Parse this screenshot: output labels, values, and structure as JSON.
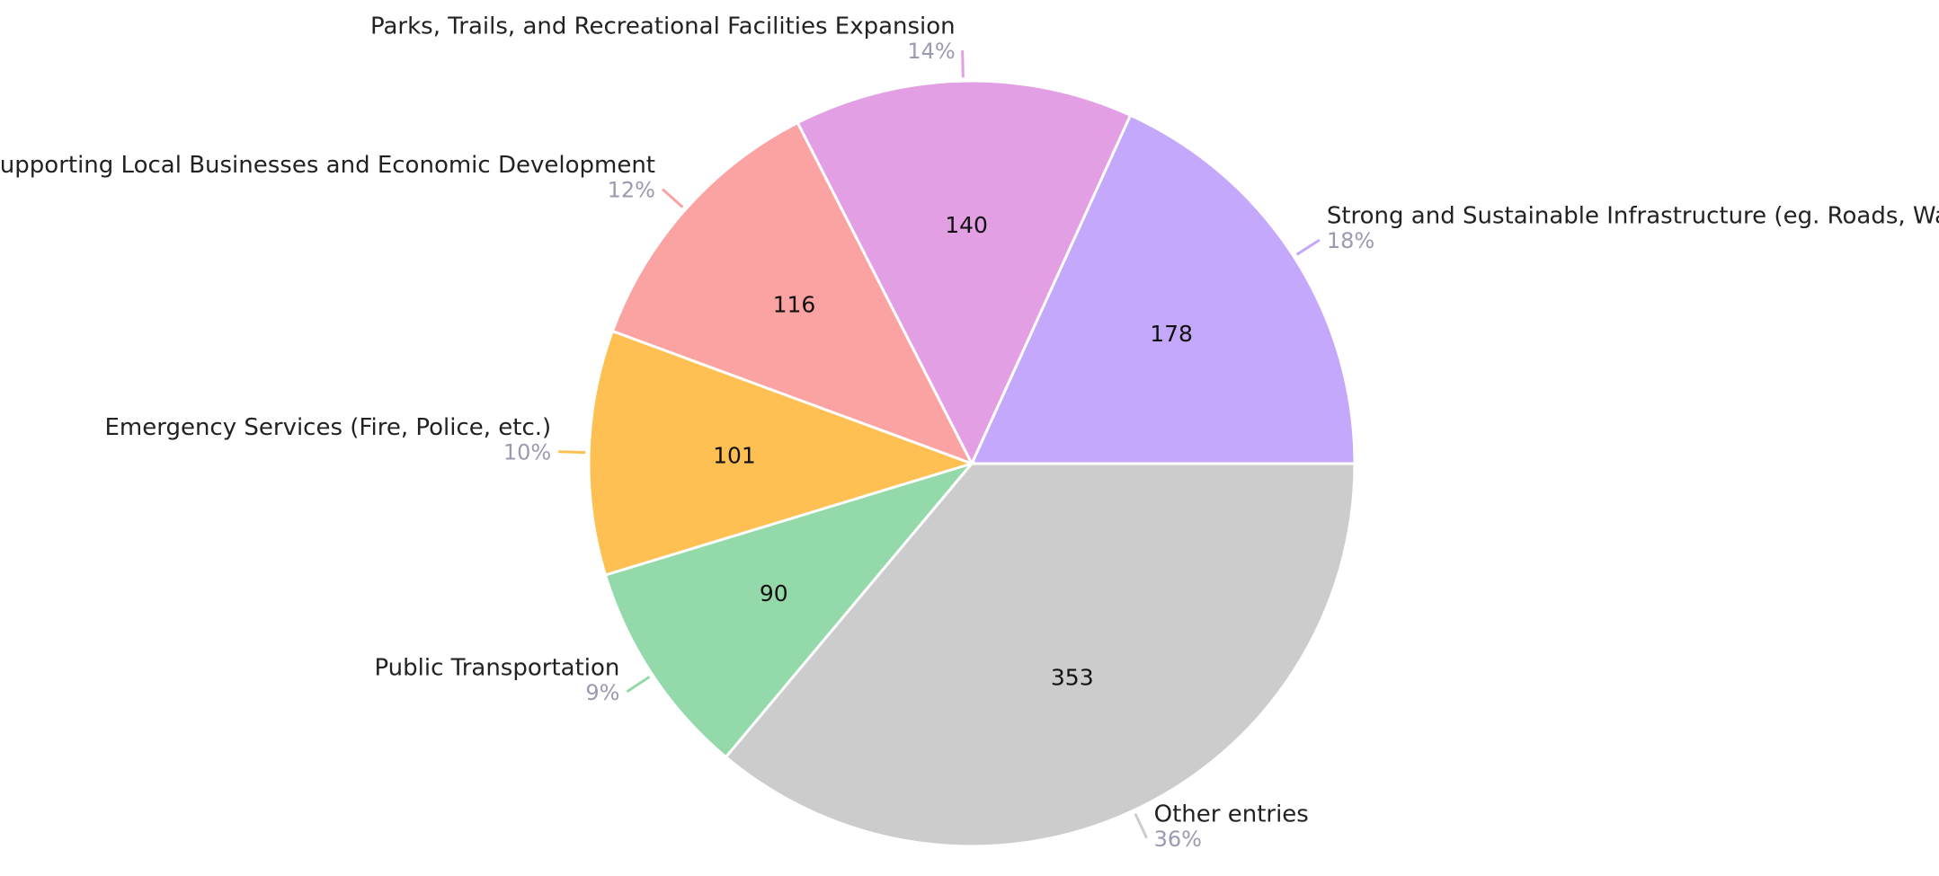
{
  "chart_data": {
    "type": "pie",
    "categories": [
      "Strong and Sustainable Infrastructure (eg. Roads, Wat",
      "Parks, Trails, and Recreational Facilities Expansion",
      "Supporting Local Businesses and Economic Development",
      "Emergency Services (Fire, Police, etc.)",
      "Public Transportation",
      "Other entries"
    ],
    "values": [
      178,
      140,
      116,
      101,
      90,
      353
    ],
    "percent_labels": [
      "18%",
      "14%",
      "12%",
      "10%",
      "9%",
      "36%"
    ],
    "colors": [
      "#c4a8fc",
      "#e29fe4",
      "#fba3a3",
      "#fec052",
      "#94d9aa",
      "#cccccc"
    ]
  }
}
